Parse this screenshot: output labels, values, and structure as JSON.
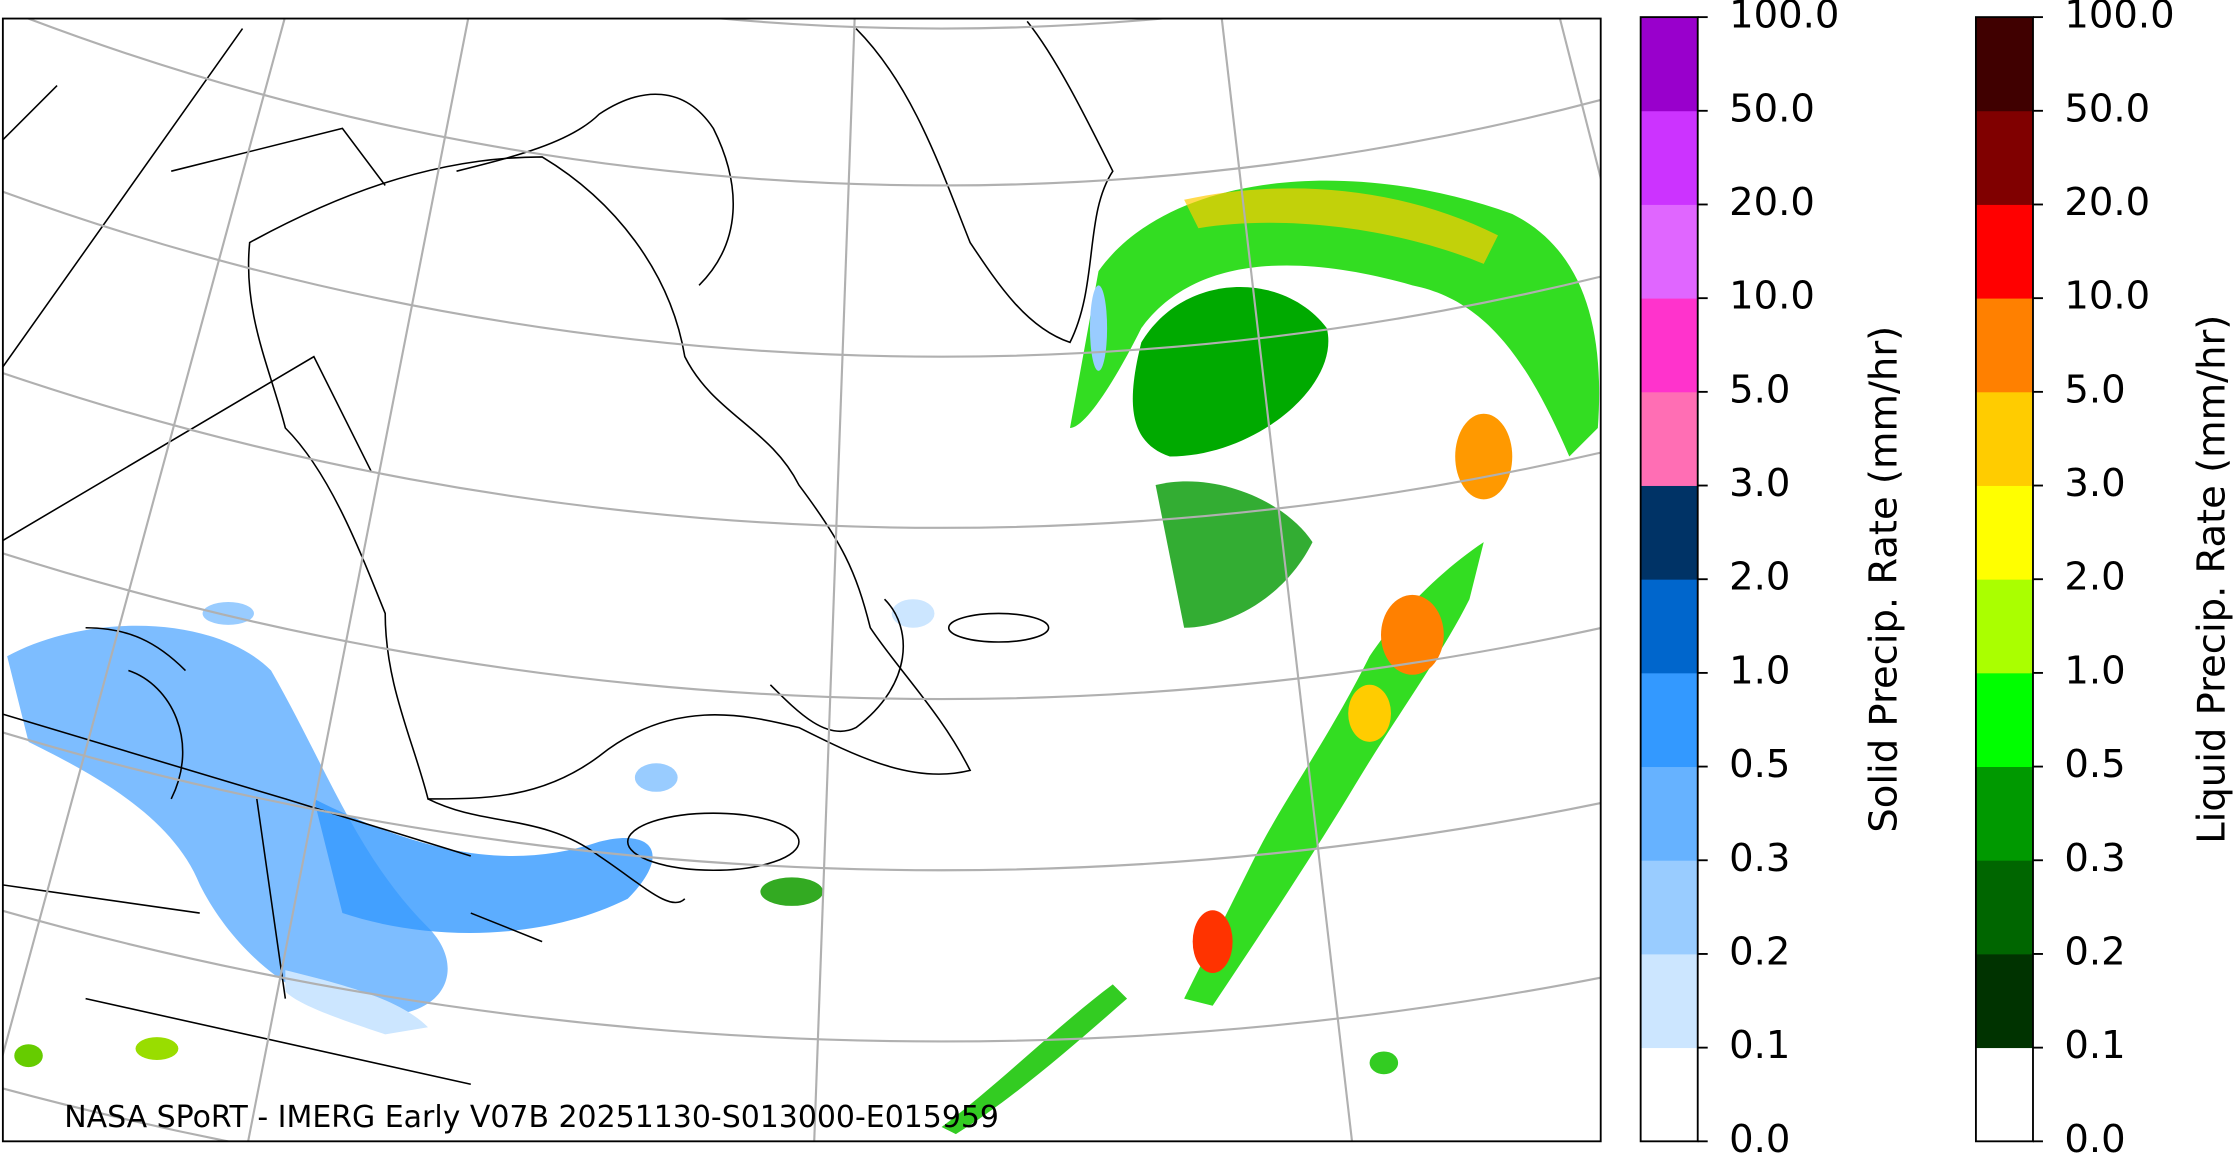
{
  "map": {
    "caption": "NASA SPoRT - IMERG Early V07B 20251130-S013000-E015959"
  },
  "colorbars": [
    {
      "label": "Solid Precip. Rate (mm/hr)",
      "ticks": [
        "0.0",
        "0.1",
        "0.2",
        "0.3",
        "0.5",
        "1.0",
        "2.0",
        "3.0",
        "5.0",
        "10.0",
        "20.0",
        "50.0",
        "100.0"
      ],
      "colors": [
        "#ffffff",
        "#cce6ff",
        "#99ccff",
        "#66b2ff",
        "#3399ff",
        "#0066cc",
        "#003366",
        "#ff6eb4",
        "#ff33cc",
        "#e066ff",
        "#cc33ff",
        "#9900cc"
      ]
    },
    {
      "label": "Liquid Precip. Rate (mm/hr)",
      "ticks": [
        "0.0",
        "0.1",
        "0.2",
        "0.3",
        "0.5",
        "1.0",
        "2.0",
        "3.0",
        "5.0",
        "10.0",
        "20.0",
        "50.0",
        "100.0"
      ],
      "colors": [
        "#ffffff",
        "#003300",
        "#006600",
        "#009900",
        "#00ff00",
        "#aaff00",
        "#ffff00",
        "#ffcc00",
        "#ff8000",
        "#ff0000",
        "#800000",
        "#400000"
      ]
    }
  ]
}
